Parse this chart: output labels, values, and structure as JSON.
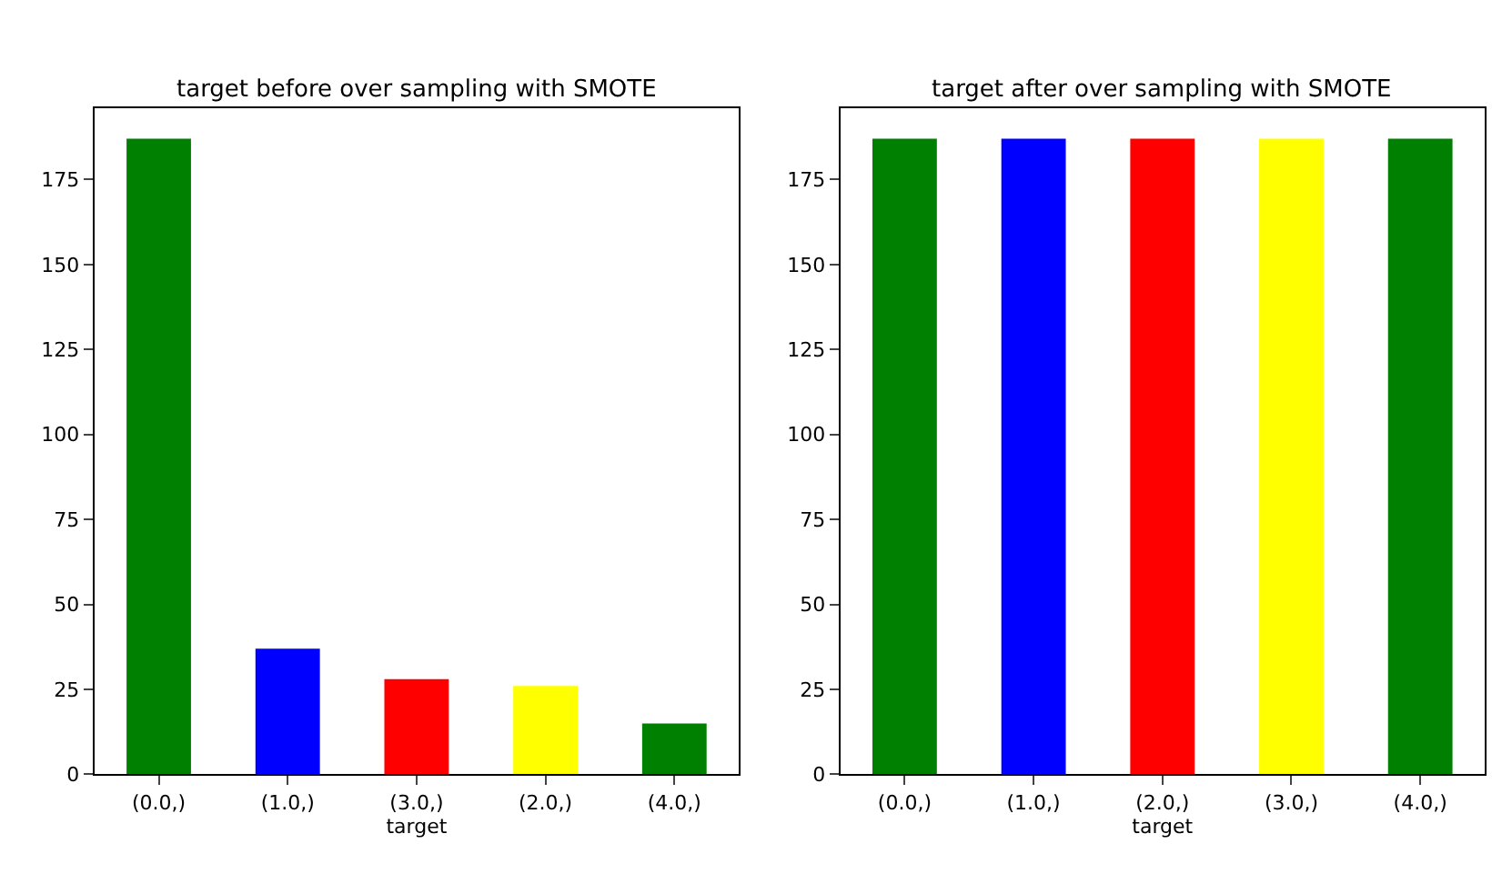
{
  "chart_data": [
    {
      "type": "bar",
      "title": "target before over sampling with SMOTE",
      "xlabel": "target",
      "categories": [
        "(0.0,)",
        "(1.0,)",
        "(3.0,)",
        "(2.0,)",
        "(4.0,)"
      ],
      "values": [
        187,
        37,
        28,
        26,
        15
      ],
      "colors": [
        "#008000",
        "#0000ff",
        "#ff0000",
        "#ffff00",
        "#008000"
      ],
      "ylim": [
        0,
        196
      ],
      "yticks": [
        0,
        25,
        50,
        75,
        100,
        125,
        150,
        175
      ]
    },
    {
      "type": "bar",
      "title": "target after over sampling with SMOTE",
      "xlabel": "target",
      "categories": [
        "(0.0,)",
        "(1.0,)",
        "(2.0,)",
        "(3.0,)",
        "(4.0,)"
      ],
      "values": [
        187,
        187,
        187,
        187,
        187
      ],
      "colors": [
        "#008000",
        "#0000ff",
        "#ff0000",
        "#ffff00",
        "#008000"
      ],
      "ylim": [
        0,
        196
      ],
      "yticks": [
        0,
        25,
        50,
        75,
        100,
        125,
        150,
        175
      ]
    }
  ]
}
